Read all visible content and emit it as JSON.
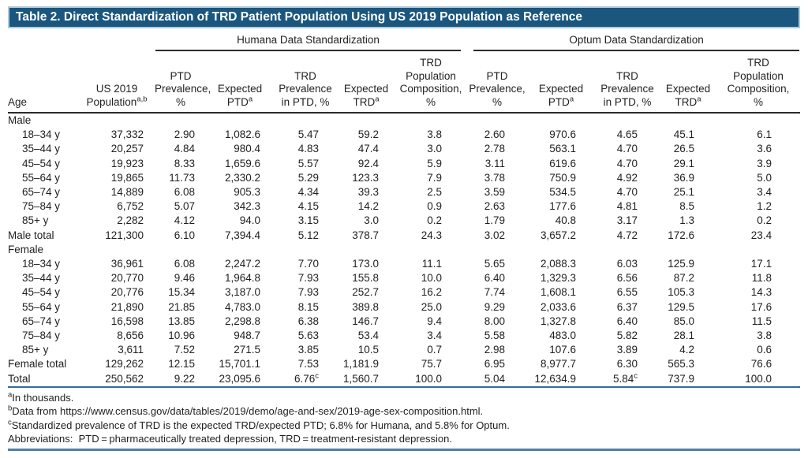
{
  "title": "Table 2. Direct Standardization of TRD Patient Population Using US 2019 Population as Reference",
  "group_headers": {
    "humana": "Humana Data Standardization",
    "optum": "Optum Data Standardization"
  },
  "column_headers": {
    "age": "Age",
    "us_population": {
      "lines": [
        "US 2019",
        "Population"
      ],
      "sup": "a,b"
    },
    "ptd_prevalence": {
      "lines": [
        "PTD",
        "Prevalence,",
        "%"
      ],
      "sup": ""
    },
    "expected_ptd": {
      "lines": [
        "Expected",
        "PTD"
      ],
      "sup": "a"
    },
    "trd_prevalence": {
      "lines": [
        "TRD",
        "Prevalence",
        "in PTD, %"
      ],
      "sup": ""
    },
    "expected_trd": {
      "lines": [
        "Expected",
        "TRD"
      ],
      "sup": "a"
    },
    "trd_composition": {
      "lines": [
        "TRD",
        "Population",
        "Composition,",
        "%"
      ],
      "sup": ""
    }
  },
  "rows": [
    {
      "type": "section",
      "label": "Male"
    },
    {
      "type": "data",
      "label": "18–34 y",
      "values": [
        "37,332",
        "2.90",
        "1,082.6",
        "5.47",
        "59.2",
        "3.8",
        "2.60",
        "970.6",
        "4.65",
        "45.1",
        "6.1"
      ]
    },
    {
      "type": "data",
      "label": "35–44 y",
      "values": [
        "20,257",
        "4.84",
        "980.4",
        "4.83",
        "47.4",
        "3.0",
        "2.78",
        "563.1",
        "4.70",
        "26.5",
        "3.6"
      ]
    },
    {
      "type": "data",
      "label": "45–54 y",
      "values": [
        "19,923",
        "8.33",
        "1,659.6",
        "5.57",
        "92.4",
        "5.9",
        "3.11",
        "619.6",
        "4.70",
        "29.1",
        "3.9"
      ]
    },
    {
      "type": "data",
      "label": "55–64 y",
      "values": [
        "19,865",
        "11.73",
        "2,330.2",
        "5.29",
        "123.3",
        "7.9",
        "3.78",
        "750.9",
        "4.92",
        "36.9",
        "5.0"
      ]
    },
    {
      "type": "data",
      "label": "65–74 y",
      "values": [
        "14,889",
        "6.08",
        "905.3",
        "4.34",
        "39.3",
        "2.5",
        "3.59",
        "534.5",
        "4.70",
        "25.1",
        "3.4"
      ]
    },
    {
      "type": "data",
      "label": "75–84 y",
      "values": [
        "6,752",
        "5.07",
        "342.3",
        "4.15",
        "14.2",
        "0.9",
        "2.63",
        "177.6",
        "4.81",
        "8.5",
        "1.2"
      ]
    },
    {
      "type": "data",
      "label": "85+ y",
      "values": [
        "2,282",
        "4.12",
        "94.0",
        "3.15",
        "3.0",
        "0.2",
        "1.79",
        "40.8",
        "3.17",
        "1.3",
        "0.2"
      ]
    },
    {
      "type": "total",
      "label": "Male total",
      "values": [
        "121,300",
        "6.10",
        "7,394.4",
        "5.12",
        "378.7",
        "24.3",
        "3.02",
        "3,657.2",
        "4.72",
        "172.6",
        "23.4"
      ]
    },
    {
      "type": "section",
      "label": "Female"
    },
    {
      "type": "data",
      "label": "18–34 y",
      "values": [
        "36,961",
        "6.08",
        "2,247.2",
        "7.70",
        "173.0",
        "11.1",
        "5.65",
        "2,088.3",
        "6.03",
        "125.9",
        "17.1"
      ]
    },
    {
      "type": "data",
      "label": "35–44 y",
      "values": [
        "20,770",
        "9.46",
        "1,964.8",
        "7.93",
        "155.8",
        "10.0",
        "6.40",
        "1,329.3",
        "6.56",
        "87.2",
        "11.8"
      ]
    },
    {
      "type": "data",
      "label": "45–54 y",
      "values": [
        "20,776",
        "15.34",
        "3,187.0",
        "7.93",
        "252.7",
        "16.2",
        "7.74",
        "1,608.1",
        "6.55",
        "105.3",
        "14.3"
      ]
    },
    {
      "type": "data",
      "label": "55–64 y",
      "values": [
        "21,890",
        "21.85",
        "4,783.0",
        "8.15",
        "389.8",
        "25.0",
        "9.29",
        "2,033.6",
        "6.37",
        "129.5",
        "17.6"
      ]
    },
    {
      "type": "data",
      "label": "65–74 y",
      "values": [
        "16,598",
        "13.85",
        "2,298.8",
        "6.38",
        "146.7",
        "9.4",
        "8.00",
        "1,327.8",
        "6.40",
        "85.0",
        "11.5"
      ]
    },
    {
      "type": "data",
      "label": "75–84 y",
      "values": [
        "8,656",
        "10.96",
        "948.7",
        "5.63",
        "53.4",
        "3.4",
        "5.58",
        "483.0",
        "5.82",
        "28.1",
        "3.8"
      ]
    },
    {
      "type": "data",
      "label": "85+ y",
      "values": [
        "3,611",
        "7.52",
        "271.5",
        "3.85",
        "10.5",
        "0.7",
        "2.98",
        "107.6",
        "3.89",
        "4.2",
        "0.6"
      ]
    },
    {
      "type": "total",
      "label": "Female total",
      "values": [
        "129,262",
        "12.15",
        "15,701.1",
        "7.53",
        "1,181.9",
        "75.7",
        "6.95",
        "8,977.7",
        "6.30",
        "565.3",
        "76.6"
      ]
    },
    {
      "type": "total",
      "label": "Total",
      "rule": "blue",
      "values": [
        "250,562",
        "9.22",
        "23,095.6",
        "6.76^c",
        "1,560.7",
        "100.0",
        "5.04",
        "12,634.9",
        "5.84^c",
        "737.9",
        "100.0"
      ]
    }
  ],
  "footnotes": [
    {
      "sup": "a",
      "text": "In thousands."
    },
    {
      "sup": "b",
      "text": "Data from https://www.census.gov/data/tables/2019/demo/age-and-sex/2019-age-sex-composition.html."
    },
    {
      "sup": "c",
      "text": "Standardized prevalence of TRD is the expected TRD/expected PTD; 6.8% for Humana, and 5.8% for Optum."
    },
    {
      "sup": "",
      "text": "Abbreviations:  PTD = pharmaceutically treated depression, TRD = treatment-resistant depression."
    }
  ],
  "colors": {
    "title_bar_bg": "#1A567E",
    "title_bar_border": "#AECBDD",
    "title_text": "#FFFFFF",
    "header_rule": "#2B2B2B",
    "total_rule_blue": "#2E6F99",
    "bottom_bar": "#4F81A2"
  }
}
